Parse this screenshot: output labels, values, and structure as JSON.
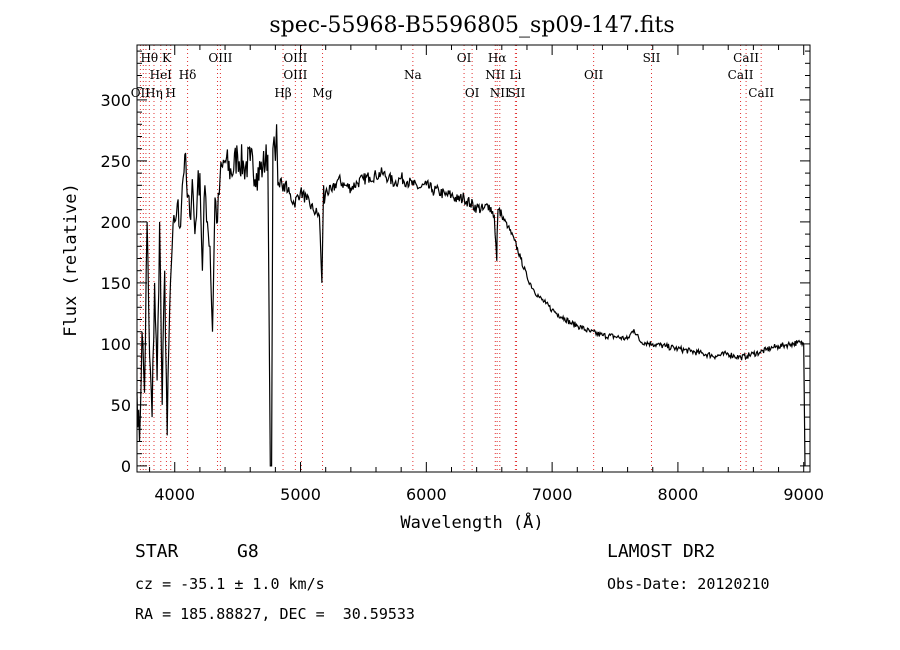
{
  "chart_data": {
    "type": "line",
    "title": "spec-55968-B5596805_sp09-147.fits",
    "xlabel": "Wavelength (Å)",
    "ylabel": "Flux (relative)",
    "xlim": [
      3700,
      9050
    ],
    "ylim": [
      -5,
      345
    ],
    "xticks": [
      4000,
      5000,
      6000,
      7000,
      8000,
      9000
    ],
    "yticks": [
      0,
      50,
      100,
      150,
      200,
      250,
      300
    ],
    "grid": false,
    "series": [
      {
        "x": [
          3700,
          3720,
          3740,
          3760,
          3780,
          3800,
          3820,
          3840,
          3860,
          3880,
          3900,
          3920,
          3940,
          3960,
          3980,
          4000,
          4020,
          4040,
          4060,
          4080,
          4100,
          4120,
          4140,
          4160,
          4180,
          4200,
          4220,
          4240,
          4260,
          4280,
          4300,
          4320,
          4340,
          4360,
          4380,
          4400,
          4450,
          4500,
          4550,
          4600,
          4650,
          4700,
          4740,
          4760,
          4770,
          4780,
          4790,
          4800,
          4810,
          4820,
          4840,
          4860,
          4880,
          4900,
          4950,
          5000,
          5050,
          5100,
          5150,
          5170,
          5183,
          5190,
          5200,
          5250,
          5300,
          5350,
          5400,
          5450,
          5500,
          5550,
          5600,
          5650,
          5700,
          5750,
          5800,
          5850,
          5900,
          5950,
          6000,
          6050,
          6100,
          6150,
          6200,
          6250,
          6300,
          6350,
          6400,
          6450,
          6500,
          6540,
          6560,
          6563,
          6570,
          6600,
          6650,
          6700,
          6750,
          6800,
          6850,
          6900,
          6950,
          7000,
          7050,
          7100,
          7150,
          7200,
          7300,
          7400,
          7500,
          7600,
          7650,
          7700,
          7800,
          7900,
          8000,
          8100,
          8200,
          8300,
          8400,
          8450,
          8500,
          8550,
          8600,
          8650,
          8700,
          8750,
          8800,
          8850,
          8900,
          8950,
          9000,
          9010
        ],
        "y": [
          60,
          20,
          110,
          60,
          200,
          90,
          40,
          150,
          70,
          200,
          50,
          160,
          25,
          130,
          180,
          200,
          215,
          195,
          230,
          255,
          220,
          205,
          235,
          190,
          225,
          240,
          160,
          230,
          200,
          180,
          110,
          220,
          200,
          235,
          245,
          250,
          240,
          255,
          245,
          250,
          240,
          245,
          255,
          0,
          0,
          260,
          270,
          250,
          280,
          230,
          235,
          225,
          232,
          225,
          215,
          225,
          218,
          210,
          205,
          150,
          230,
          215,
          225,
          225,
          235,
          230,
          228,
          232,
          235,
          237,
          238,
          240,
          236,
          232,
          236,
          233,
          230,
          228,
          230,
          226,
          225,
          222,
          222,
          218,
          220,
          215,
          212,
          210,
          214,
          205,
          168,
          190,
          210,
          205,
          196,
          185,
          170,
          155,
          145,
          138,
          133,
          128,
          124,
          121,
          117,
          115,
          110,
          107,
          106,
          104,
          112,
          102,
          100,
          98,
          96,
          94,
          92,
          90,
          92,
          90,
          89,
          90,
          92,
          93,
          95,
          97,
          98,
          99,
          100,
          101,
          100,
          0
        ]
      }
    ],
    "spectral_lines": [
      {
        "label": "Hθ",
        "x": 3798,
        "row": 1
      },
      {
        "label": "K",
        "x": 3934,
        "row": 1
      },
      {
        "label": "OIII",
        "x": 4363,
        "row": 1
      },
      {
        "label": "OIII",
        "x": 4959,
        "row": 1
      },
      {
        "label": "OI",
        "x": 6300,
        "row": 1
      },
      {
        "label": "Hα",
        "x": 6563,
        "row": 1
      },
      {
        "label": "SII",
        "x": 7790,
        "row": 1
      },
      {
        "label": "CaII",
        "x": 8542,
        "row": 1
      },
      {
        "label": "HeI",
        "x": 3889,
        "row": 2
      },
      {
        "label": "Hδ",
        "x": 4102,
        "row": 2
      },
      {
        "label": "OIII",
        "x": 4959,
        "row": 2
      },
      {
        "label": "Na",
        "x": 5893,
        "row": 2
      },
      {
        "label": "NII",
        "x": 6548,
        "row": 2
      },
      {
        "label": "Li",
        "x": 6708,
        "row": 2
      },
      {
        "label": "OII",
        "x": 7330,
        "row": 2
      },
      {
        "label": "CaII",
        "x": 8498,
        "row": 2
      },
      {
        "label": "OII",
        "x": 3727,
        "row": 3
      },
      {
        "label": "Hη",
        "x": 3835,
        "row": 3
      },
      {
        "label": "H",
        "x": 3968,
        "row": 3
      },
      {
        "label": "Hβ",
        "x": 4861,
        "row": 3
      },
      {
        "label": "Mg",
        "x": 5175,
        "row": 3
      },
      {
        "label": "OI",
        "x": 6364,
        "row": 3
      },
      {
        "label": "NII",
        "x": 6584,
        "row": 3
      },
      {
        "label": "SII",
        "x": 6717,
        "row": 3
      },
      {
        "label": "CaII",
        "x": 8662,
        "row": 3
      }
    ],
    "extra_line_markers": [
      3727,
      3750,
      3771,
      3798,
      3835,
      3889,
      3934,
      3968,
      4102,
      4340,
      4363,
      4861,
      4959,
      5007,
      5175,
      5893,
      6300,
      6364,
      6548,
      6563,
      6584,
      6708,
      6717,
      7330,
      7790,
      8498,
      8542,
      8662
    ]
  },
  "info": {
    "class": "STAR",
    "subclass": "G8",
    "survey": "LAMOST DR2",
    "cz": "cz = -35.1 ± 1.0 km/s",
    "obs_date": "Obs-Date: 20120210",
    "coords": "RA = 185.88827, DEC =  30.59533"
  },
  "colors": {
    "spectrum": "#000000",
    "line_markers": "#e03030",
    "axes": "#000000"
  }
}
